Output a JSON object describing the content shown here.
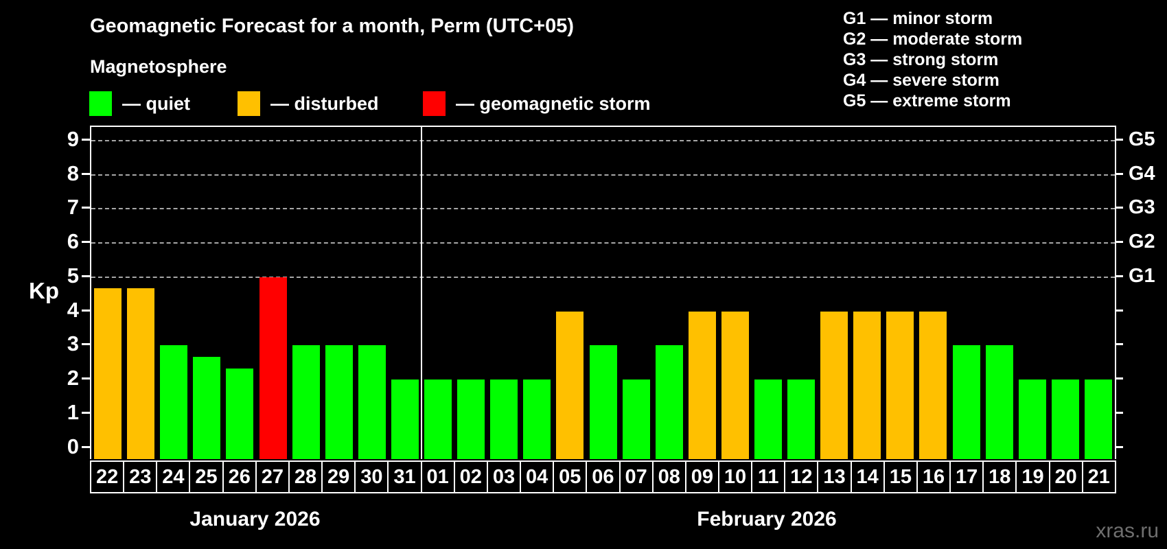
{
  "title": "Geomagnetic Forecast for a month, Perm (UTC+05)",
  "subtitle": "Magnetosphere",
  "legend": {
    "quiet": {
      "label": "— quiet",
      "color": "#00ff00"
    },
    "disturbed": {
      "label": "— disturbed",
      "color": "#ffc000"
    },
    "storm": {
      "label": "— geomagnetic storm",
      "color": "#ff0000"
    }
  },
  "g_scale": [
    {
      "code": "G1",
      "label": "G1 — minor storm"
    },
    {
      "code": "G2",
      "label": "G2 — moderate storm"
    },
    {
      "code": "G3",
      "label": "G3 — strong storm"
    },
    {
      "code": "G4",
      "label": "G4 — severe storm"
    },
    {
      "code": "G5",
      "label": "G5 — extreme storm"
    }
  ],
  "watermark": "xras.ru",
  "chart_data": {
    "type": "bar",
    "title": "Geomagnetic Forecast for a month, Perm (UTC+05)",
    "ylabel": "Kp",
    "ylim": [
      0,
      9
    ],
    "yticks": [
      0,
      1,
      2,
      3,
      4,
      5,
      6,
      7,
      8,
      9
    ],
    "right_axis": [
      {
        "label": "G1",
        "kp": 5
      },
      {
        "label": "G2",
        "kp": 6
      },
      {
        "label": "G3",
        "kp": 7
      },
      {
        "label": "G4",
        "kp": 8
      },
      {
        "label": "G5",
        "kp": 9
      }
    ],
    "gridlines_at": [
      5,
      6,
      7,
      8,
      9
    ],
    "grid": "dashed horizontal at storm levels only",
    "legend_position": "top-left",
    "status_colors": {
      "quiet": "#00ff00",
      "disturbed": "#ffc000",
      "storm": "#ff0000"
    },
    "months": [
      {
        "label": "January 2026",
        "days": 10
      },
      {
        "label": "February 2026",
        "days": 21
      }
    ],
    "points": [
      {
        "month": "January 2026",
        "day": "22",
        "kp": 4.67,
        "status": "disturbed"
      },
      {
        "month": "January 2026",
        "day": "23",
        "kp": 4.67,
        "status": "disturbed"
      },
      {
        "month": "January 2026",
        "day": "24",
        "kp": 3.0,
        "status": "quiet"
      },
      {
        "month": "January 2026",
        "day": "25",
        "kp": 2.67,
        "status": "quiet"
      },
      {
        "month": "January 2026",
        "day": "26",
        "kp": 2.33,
        "status": "quiet"
      },
      {
        "month": "January 2026",
        "day": "27",
        "kp": 5.0,
        "status": "storm"
      },
      {
        "month": "January 2026",
        "day": "28",
        "kp": 3.0,
        "status": "quiet"
      },
      {
        "month": "January 2026",
        "day": "29",
        "kp": 3.0,
        "status": "quiet"
      },
      {
        "month": "January 2026",
        "day": "30",
        "kp": 3.0,
        "status": "quiet"
      },
      {
        "month": "January 2026",
        "day": "31",
        "kp": 2.0,
        "status": "quiet"
      },
      {
        "month": "February 2026",
        "day": "01",
        "kp": 2.0,
        "status": "quiet"
      },
      {
        "month": "February 2026",
        "day": "02",
        "kp": 2.0,
        "status": "quiet"
      },
      {
        "month": "February 2026",
        "day": "03",
        "kp": 2.0,
        "status": "quiet"
      },
      {
        "month": "February 2026",
        "day": "04",
        "kp": 2.0,
        "status": "quiet"
      },
      {
        "month": "February 2026",
        "day": "05",
        "kp": 4.0,
        "status": "disturbed"
      },
      {
        "month": "February 2026",
        "day": "06",
        "kp": 3.0,
        "status": "quiet"
      },
      {
        "month": "February 2026",
        "day": "07",
        "kp": 2.0,
        "status": "quiet"
      },
      {
        "month": "February 2026",
        "day": "08",
        "kp": 3.0,
        "status": "quiet"
      },
      {
        "month": "February 2026",
        "day": "09",
        "kp": 4.0,
        "status": "disturbed"
      },
      {
        "month": "February 2026",
        "day": "10",
        "kp": 4.0,
        "status": "disturbed"
      },
      {
        "month": "February 2026",
        "day": "11",
        "kp": 2.0,
        "status": "quiet"
      },
      {
        "month": "February 2026",
        "day": "12",
        "kp": 2.0,
        "status": "quiet"
      },
      {
        "month": "February 2026",
        "day": "13",
        "kp": 4.0,
        "status": "disturbed"
      },
      {
        "month": "February 2026",
        "day": "14",
        "kp": 4.0,
        "status": "disturbed"
      },
      {
        "month": "February 2026",
        "day": "15",
        "kp": 4.0,
        "status": "disturbed"
      },
      {
        "month": "February 2026",
        "day": "16",
        "kp": 4.0,
        "status": "disturbed"
      },
      {
        "month": "February 2026",
        "day": "17",
        "kp": 3.0,
        "status": "quiet"
      },
      {
        "month": "February 2026",
        "day": "18",
        "kp": 3.0,
        "status": "quiet"
      },
      {
        "month": "February 2026",
        "day": "19",
        "kp": 2.0,
        "status": "quiet"
      },
      {
        "month": "February 2026",
        "day": "20",
        "kp": 2.0,
        "status": "quiet"
      },
      {
        "month": "February 2026",
        "day": "21",
        "kp": 2.0,
        "status": "quiet"
      }
    ]
  }
}
